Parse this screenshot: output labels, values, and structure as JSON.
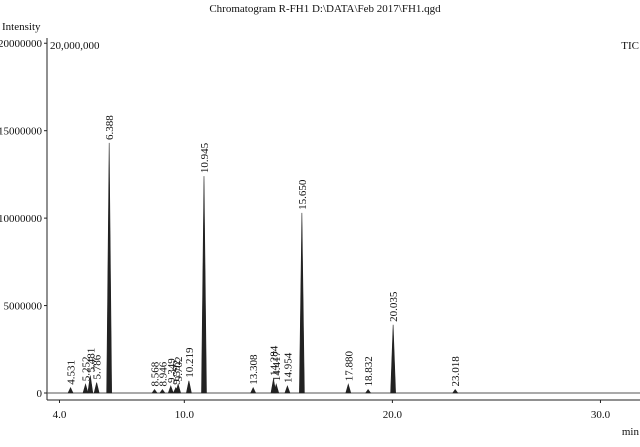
{
  "chart_data": {
    "type": "chromatogram",
    "title": "Chromatogram R-FH1 D:\\DATA\\Feb 2017\\FH1.qgd",
    "y_label": "Intensity",
    "x_label": "min",
    "scale_label": "20,000,000",
    "trace_label": "TIC",
    "xlim": [
      3.4,
      31.9
    ],
    "ylim": [
      -400000,
      20300000
    ],
    "xticks": [
      {
        "value": 4,
        "label": "4.0"
      },
      {
        "value": 10,
        "label": "10.0"
      },
      {
        "value": 20,
        "label": "20.0"
      },
      {
        "value": 30,
        "label": "30.0"
      }
    ],
    "yticks": [
      0,
      5000000,
      10000000,
      15000000,
      20000000
    ],
    "series": [
      {
        "name": "TIC",
        "color": "#222222",
        "x": [
          4.531,
          5.252,
          5.481,
          5.786,
          6.388,
          8.568,
          8.946,
          9.349,
          9.592,
          9.702,
          10.219,
          10.945,
          13.308,
          14.284,
          14.417,
          14.954,
          15.65,
          17.88,
          18.832,
          20.035,
          23.018
        ],
        "labels": [
          "4.531",
          "5.252",
          "5.481",
          "5.786",
          "6.388",
          "8.568",
          "8.946",
          "9.349",
          "9.592",
          "9.702",
          "10.219",
          "10.945",
          "13.308",
          "14.284",
          "14.417",
          "14.954",
          "15.650",
          "17.880",
          "18.832",
          "20.035",
          "23.018"
        ],
        "values": [
          300000,
          500000,
          1000000,
          600000,
          14300000,
          200000,
          200000,
          400000,
          300000,
          500000,
          700000,
          12400000,
          300000,
          800000,
          500000,
          400000,
          10300000,
          500000,
          200000,
          3900000,
          200000
        ]
      }
    ]
  }
}
